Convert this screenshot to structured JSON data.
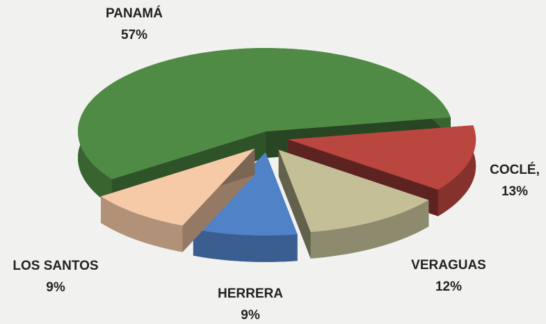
{
  "chart_data": {
    "type": "pie3d",
    "categories": [
      "PANAMÁ",
      "COCLÉ,",
      "VERAGUAS",
      "HERRERA",
      "LOS SANTOS"
    ],
    "values": [
      57,
      13,
      12,
      9,
      9
    ],
    "value_labels": [
      "57%",
      "13%",
      "12%",
      "9%",
      "9%"
    ],
    "colors": [
      "#4f8b45",
      "#b9463f",
      "#c5bf98",
      "#5082c8",
      "#f6caa6"
    ]
  }
}
